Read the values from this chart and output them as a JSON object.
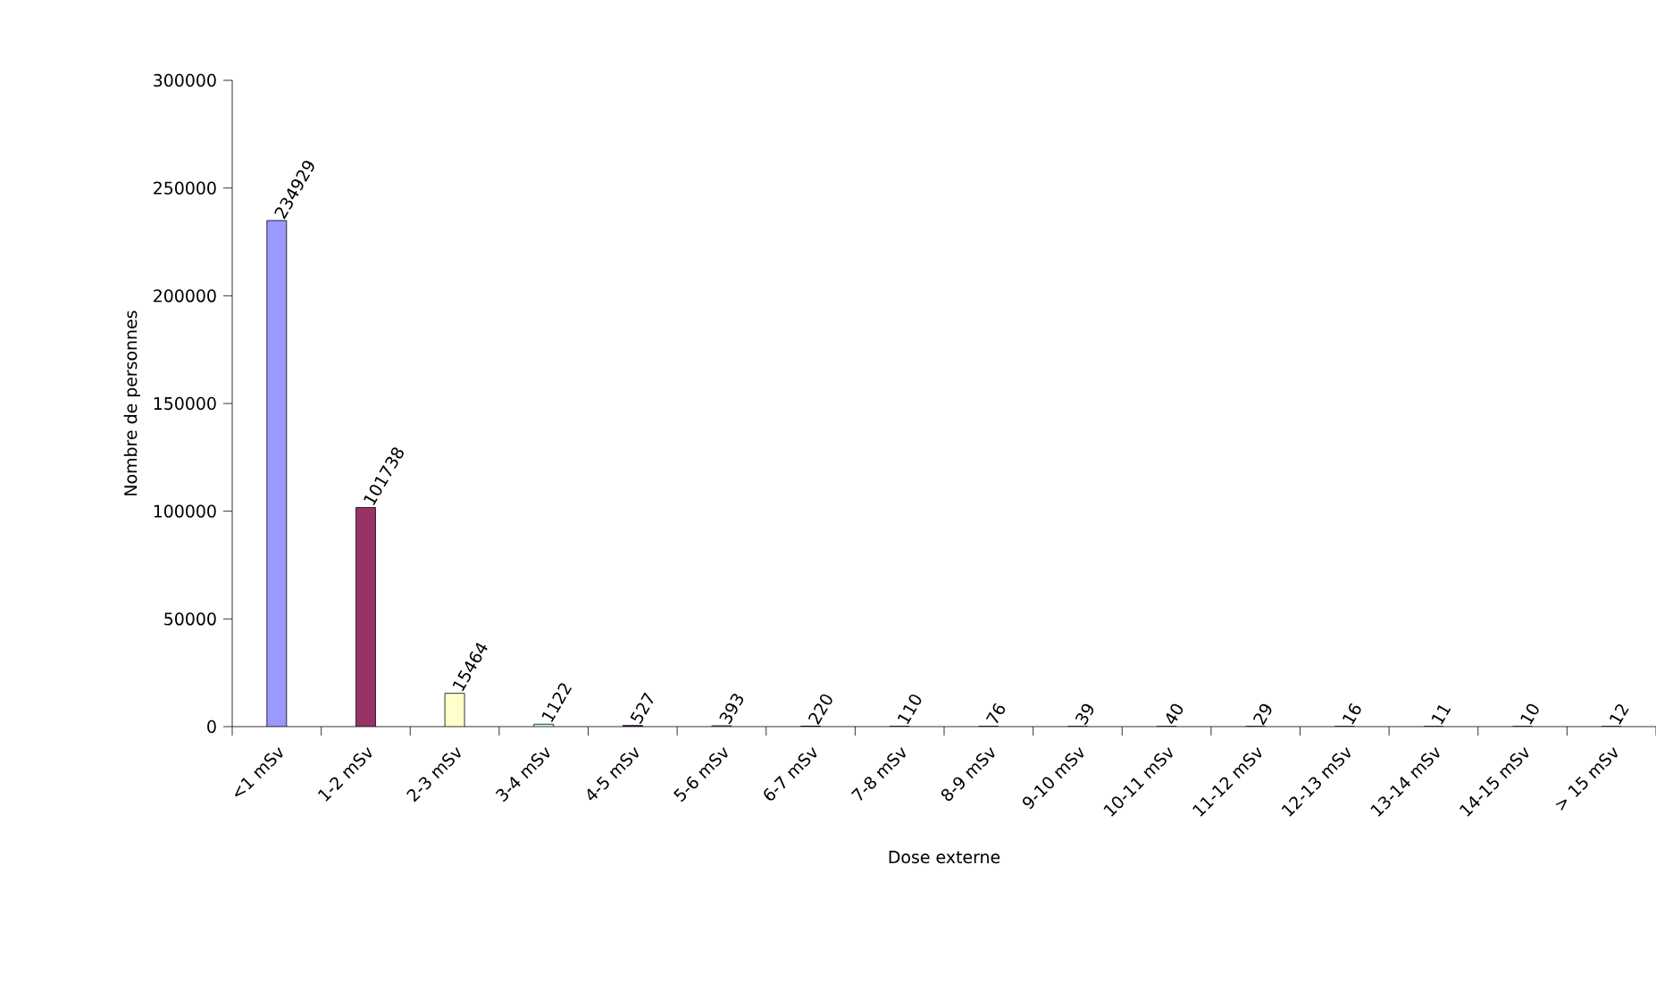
{
  "chart_data": {
    "type": "bar",
    "xlabel": "Dose externe",
    "ylabel": "Nombre de personnes",
    "categories": [
      "<1 mSv",
      "1-2 mSv",
      "2-3 mSv",
      "3-4 mSv",
      "4-5 mSv",
      "5-6 mSv",
      "6-7 mSv",
      "7-8 mSv",
      "8-9 mSv",
      "9-10 mSv",
      "10-11 mSv",
      "11-12 mSv",
      "12-13 mSv",
      "13-14 mSv",
      "14-15 mSv",
      "> 15 mSv"
    ],
    "values": [
      234929,
      101738,
      15464,
      1122,
      527,
      393,
      220,
      110,
      76,
      39,
      40,
      29,
      16,
      11,
      10,
      12
    ],
    "colors": [
      "#9999ff",
      "#993366",
      "#ffffcc",
      "#ccffff",
      "#660066",
      "#ff8080",
      "#0066cc",
      "#ccccff",
      "#000080",
      "#ff00ff",
      "#ffff00",
      "#00ffff",
      "#800080",
      "#800000",
      "#008080",
      "#0000ff"
    ],
    "ylim": [
      0,
      300000
    ],
    "yticks": [
      0,
      50000,
      100000,
      150000,
      200000,
      250000,
      300000
    ],
    "data_labels": true,
    "grid": false
  }
}
